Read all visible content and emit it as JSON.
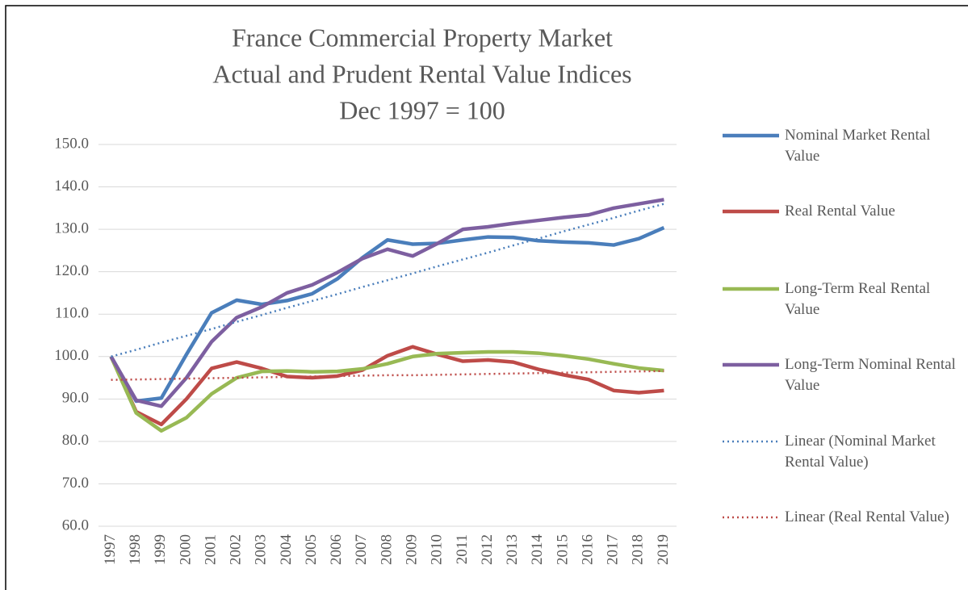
{
  "chart_data": {
    "type": "line",
    "title": "France Commercial Property Market",
    "subtitle": [
      "Actual and Prudent Rental Value Indices",
      "Dec 1997 = 100"
    ],
    "categories": [
      "1997",
      "1998",
      "1999",
      "2000",
      "2001",
      "2002",
      "2003",
      "2004",
      "2005",
      "2006",
      "2007",
      "2008",
      "2009",
      "2010",
      "2011",
      "2012",
      "2013",
      "2014",
      "2015",
      "2016",
      "2017",
      "2018",
      "2019"
    ],
    "series": [
      {
        "name": "Nominal Market Rental Value",
        "color": "#4a7ebb",
        "dash": "solid",
        "values": [
          100,
          89.5,
          90.2,
          100.5,
          110.3,
          113.3,
          112.3,
          113.2,
          114.8,
          118.3,
          123.3,
          127.5,
          126.5,
          126.7,
          127.5,
          128.2,
          128.1,
          127.3,
          127.0,
          126.8,
          126.3,
          127.8,
          130.4
        ]
      },
      {
        "name": "Real Rental Value",
        "color": "#be4b48",
        "dash": "solid",
        "values": [
          100,
          87,
          84,
          90,
          97.2,
          98.7,
          97.2,
          95.3,
          95.0,
          95.4,
          96.8,
          100.2,
          102.3,
          100.5,
          98.9,
          99.2,
          98.7,
          97.0,
          95.7,
          94.6,
          92.0,
          91.5,
          92.0
        ]
      },
      {
        "name": "Long-Term Real Rental Value",
        "color": "#98b954",
        "dash": "solid",
        "values": [
          100,
          86.7,
          82.5,
          85.6,
          91.2,
          95.0,
          96.5,
          96.6,
          96.4,
          96.5,
          97.1,
          98.3,
          100.0,
          100.7,
          100.9,
          101.1,
          101.1,
          100.8,
          100.2,
          99.4,
          98.3,
          97.3,
          96.7
        ]
      },
      {
        "name": "Long-Term Nominal Rental Value",
        "color": "#7d5fa0",
        "dash": "solid",
        "values": [
          100,
          89.7,
          88.3,
          95.0,
          103.5,
          109.2,
          111.7,
          115.0,
          116.9,
          119.8,
          123.1,
          125.3,
          123.7,
          126.7,
          130.0,
          130.6,
          131.4,
          132.1,
          132.8,
          133.4,
          135.0,
          136.0,
          137.0
        ]
      },
      {
        "name": "Linear (Nominal Market Rental Value)",
        "color": "#4a7ebb",
        "dash": "dotted",
        "values": [
          100,
          101.6,
          103.3,
          104.9,
          106.5,
          108.2,
          109.8,
          111.5,
          113.1,
          114.7,
          116.4,
          118.0,
          119.6,
          121.3,
          122.9,
          124.5,
          126.2,
          127.8,
          129.5,
          131.1,
          132.7,
          134.4,
          136.0
        ]
      },
      {
        "name": "Linear (Real Rental Value)",
        "color": "#be4b48",
        "dash": "dotted",
        "values": [
          94.5,
          94.6,
          94.7,
          94.8,
          94.9,
          95.0,
          95.1,
          95.2,
          95.3,
          95.4,
          95.5,
          95.6,
          95.6,
          95.7,
          95.8,
          95.9,
          96.0,
          96.1,
          96.2,
          96.3,
          96.4,
          96.5,
          96.6
        ]
      }
    ],
    "ylim": [
      60,
      150
    ],
    "yticks": [
      {
        "value": 60,
        "label": "60.0"
      },
      {
        "value": 70,
        "label": "70.0"
      },
      {
        "value": 80,
        "label": "80.0"
      },
      {
        "value": 90,
        "label": "90.0"
      },
      {
        "value": 100,
        "label": "100.0"
      },
      {
        "value": 110,
        "label": "110.0"
      },
      {
        "value": 120,
        "label": "120.0"
      },
      {
        "value": 130,
        "label": "130.0"
      },
      {
        "value": 140,
        "label": "140.0"
      },
      {
        "value": 150,
        "label": "150.0"
      }
    ],
    "grid": true,
    "legend": "right"
  }
}
